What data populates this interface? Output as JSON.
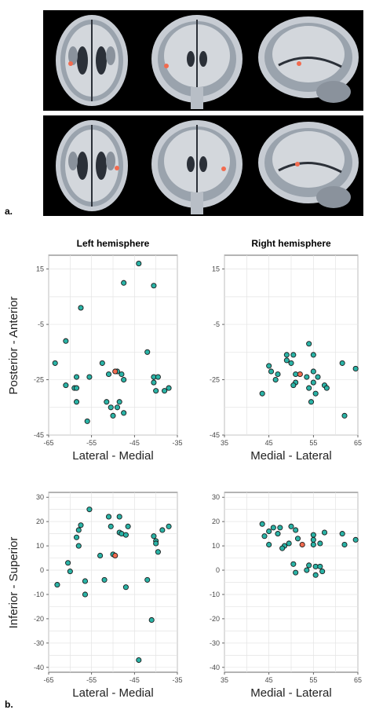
{
  "panel_labels": {
    "a": "a.",
    "b": "b."
  },
  "colors": {
    "background": "#ffffff",
    "grid": "#e4e4e4",
    "point_fill": "#2ab3a6",
    "point_stroke": "#1b1b1b",
    "highlight_fill": "#f26b4f",
    "axis_text": "#4a4a4a"
  },
  "chart_data": [
    {
      "type": "scatter",
      "title": "Left hemisphere",
      "xlabel": "Lateral - Medial",
      "ylabel": "Posterior - Anterior",
      "xlim": [
        -65,
        -35
      ],
      "ylim": [
        -45,
        20
      ],
      "xticks": [
        -65,
        -55,
        -45,
        -35
      ],
      "yticks": [
        15,
        -5,
        -25,
        -45
      ],
      "grid": true,
      "points": [
        {
          "x": -44,
          "y": 17
        },
        {
          "x": -47.5,
          "y": 10
        },
        {
          "x": -40.5,
          "y": 9
        },
        {
          "x": -57.5,
          "y": 1
        },
        {
          "x": -61,
          "y": -11
        },
        {
          "x": -63.5,
          "y": -19
        },
        {
          "x": -42,
          "y": -15
        },
        {
          "x": -52.5,
          "y": -19
        },
        {
          "x": -51,
          "y": -23
        },
        {
          "x": -49,
          "y": -22
        },
        {
          "x": -48,
          "y": -23
        },
        {
          "x": -47.5,
          "y": -25
        },
        {
          "x": -58.5,
          "y": -24
        },
        {
          "x": -55.5,
          "y": -24
        },
        {
          "x": -40.5,
          "y": -24
        },
        {
          "x": -39.5,
          "y": -24
        },
        {
          "x": -61,
          "y": -27
        },
        {
          "x": -59,
          "y": -28
        },
        {
          "x": -58.5,
          "y": -28
        },
        {
          "x": -40.5,
          "y": -26
        },
        {
          "x": -37,
          "y": -28
        },
        {
          "x": -40,
          "y": -29
        },
        {
          "x": -38,
          "y": -29
        },
        {
          "x": -58.5,
          "y": -33
        },
        {
          "x": -51.5,
          "y": -33
        },
        {
          "x": -48.5,
          "y": -33
        },
        {
          "x": -50.5,
          "y": -35
        },
        {
          "x": -49,
          "y": -35
        },
        {
          "x": -50,
          "y": -38
        },
        {
          "x": -47.5,
          "y": -37
        },
        {
          "x": -56,
          "y": -40
        }
      ],
      "highlight": [
        {
          "x": -49.5,
          "y": -22
        }
      ]
    },
    {
      "type": "scatter",
      "title": "Right hemisphere",
      "xlabel": "Medial - Lateral",
      "ylabel": "",
      "xlim": [
        35,
        65
      ],
      "ylim": [
        -45,
        20
      ],
      "xticks": [
        35,
        45,
        55,
        65
      ],
      "yticks": [
        15,
        -5,
        -25,
        -45
      ],
      "grid": true,
      "points": [
        {
          "x": 54,
          "y": -12
        },
        {
          "x": 49,
          "y": -16
        },
        {
          "x": 50.5,
          "y": -16
        },
        {
          "x": 55,
          "y": -16
        },
        {
          "x": 49,
          "y": -18
        },
        {
          "x": 50,
          "y": -19
        },
        {
          "x": 61.5,
          "y": -19
        },
        {
          "x": 45,
          "y": -20
        },
        {
          "x": 64.5,
          "y": -21
        },
        {
          "x": 45.5,
          "y": -22
        },
        {
          "x": 55,
          "y": -22
        },
        {
          "x": 47,
          "y": -23
        },
        {
          "x": 51,
          "y": -23
        },
        {
          "x": 53.5,
          "y": -24
        },
        {
          "x": 46.5,
          "y": -25
        },
        {
          "x": 56,
          "y": -24
        },
        {
          "x": 51,
          "y": -26
        },
        {
          "x": 55,
          "y": -26
        },
        {
          "x": 50.5,
          "y": -27
        },
        {
          "x": 57.5,
          "y": -27
        },
        {
          "x": 54,
          "y": -28
        },
        {
          "x": 58,
          "y": -28
        },
        {
          "x": 43.5,
          "y": -30
        },
        {
          "x": 55.5,
          "y": -30
        },
        {
          "x": 54.5,
          "y": -33
        },
        {
          "x": 62,
          "y": -38
        }
      ],
      "highlight": [
        {
          "x": 52,
          "y": -23
        }
      ]
    },
    {
      "type": "scatter",
      "title": "",
      "xlabel": "Lateral - Medial",
      "ylabel": "Inferior - Superior",
      "xlim": [
        -65,
        -35
      ],
      "ylim": [
        -42,
        32
      ],
      "xticks": [
        -65,
        -55,
        -45,
        -35
      ],
      "yticks": [
        30,
        20,
        10,
        0,
        -10,
        -20,
        -30,
        -40
      ],
      "grid": true,
      "points": [
        {
          "x": -55.5,
          "y": 25
        },
        {
          "x": -51,
          "y": 22
        },
        {
          "x": -48.5,
          "y": 22
        },
        {
          "x": -57.5,
          "y": 18.5
        },
        {
          "x": -50.5,
          "y": 18
        },
        {
          "x": -46.5,
          "y": 18
        },
        {
          "x": -37,
          "y": 18
        },
        {
          "x": -58,
          "y": 16.5
        },
        {
          "x": -48.5,
          "y": 15.5
        },
        {
          "x": -48,
          "y": 15
        },
        {
          "x": -38.5,
          "y": 16.5
        },
        {
          "x": -47,
          "y": 14.5
        },
        {
          "x": -58.5,
          "y": 13.5
        },
        {
          "x": -40.5,
          "y": 14
        },
        {
          "x": -40,
          "y": 12
        },
        {
          "x": -58,
          "y": 10
        },
        {
          "x": -40,
          "y": 11
        },
        {
          "x": -39.5,
          "y": 7.5
        },
        {
          "x": -53,
          "y": 6
        },
        {
          "x": -50,
          "y": 6.5
        },
        {
          "x": -60.5,
          "y": 3
        },
        {
          "x": -60,
          "y": -0.5
        },
        {
          "x": -52,
          "y": -4
        },
        {
          "x": -56.5,
          "y": -4.5
        },
        {
          "x": -42,
          "y": -4
        },
        {
          "x": -47,
          "y": -7
        },
        {
          "x": -63,
          "y": -6
        },
        {
          "x": -56.5,
          "y": -10
        },
        {
          "x": -41,
          "y": -20.5
        },
        {
          "x": -44,
          "y": -37
        }
      ],
      "highlight": [
        {
          "x": -49.5,
          "y": 6
        }
      ]
    },
    {
      "type": "scatter",
      "title": "",
      "xlabel": "Medial - Lateral",
      "ylabel": "",
      "xlim": [
        35,
        65
      ],
      "ylim": [
        -42,
        32
      ],
      "xticks": [
        35,
        45,
        55,
        65
      ],
      "yticks": [
        30,
        20,
        10,
        0,
        -10,
        -20,
        -30,
        -40
      ],
      "grid": true,
      "points": [
        {
          "x": 43.5,
          "y": 19
        },
        {
          "x": 50,
          "y": 18
        },
        {
          "x": 46,
          "y": 17.5
        },
        {
          "x": 47.5,
          "y": 17.5
        },
        {
          "x": 51,
          "y": 16.5
        },
        {
          "x": 45,
          "y": 16
        },
        {
          "x": 47,
          "y": 15
        },
        {
          "x": 57.5,
          "y": 15.5
        },
        {
          "x": 61.5,
          "y": 15
        },
        {
          "x": 55,
          "y": 14.5
        },
        {
          "x": 44,
          "y": 14
        },
        {
          "x": 51.5,
          "y": 13
        },
        {
          "x": 55,
          "y": 12.5
        },
        {
          "x": 64.5,
          "y": 12.5
        },
        {
          "x": 49.5,
          "y": 11
        },
        {
          "x": 56.5,
          "y": 11
        },
        {
          "x": 45,
          "y": 10.5
        },
        {
          "x": 48.5,
          "y": 10
        },
        {
          "x": 55,
          "y": 10.5
        },
        {
          "x": 48,
          "y": 9
        },
        {
          "x": 62,
          "y": 10.5
        },
        {
          "x": 50.5,
          "y": 2.5
        },
        {
          "x": 54,
          "y": 2
        },
        {
          "x": 55.5,
          "y": 1.5
        },
        {
          "x": 56.5,
          "y": 1.5
        },
        {
          "x": 53.5,
          "y": 0
        },
        {
          "x": 57,
          "y": -0.5
        },
        {
          "x": 51,
          "y": -1
        },
        {
          "x": 55.5,
          "y": -2
        }
      ],
      "highlight": [
        {
          "x": 52.5,
          "y": 10.5
        }
      ]
    }
  ]
}
